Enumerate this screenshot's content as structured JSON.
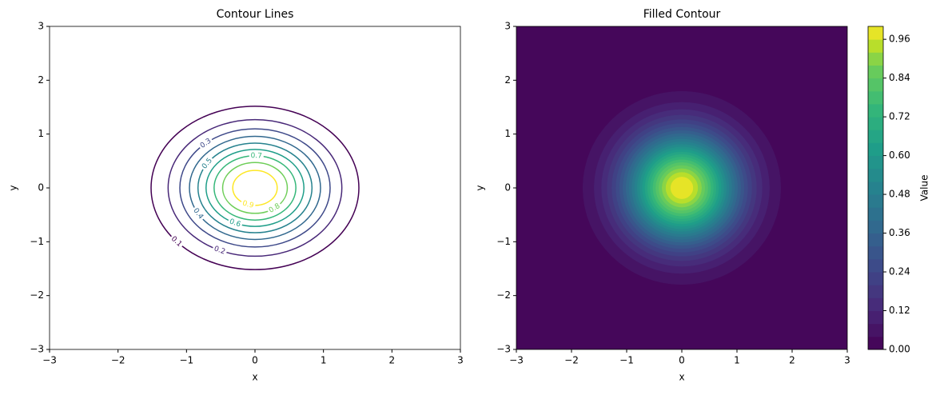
{
  "chart_data": [
    {
      "type": "contour",
      "title": "Contour Lines",
      "xlabel": "x",
      "ylabel": "y",
      "xlim": [
        -3,
        3
      ],
      "ylim": [
        -3,
        3
      ],
      "xticks": [
        {
          "value": -3,
          "label": "−3"
        },
        {
          "value": -2,
          "label": "−2"
        },
        {
          "value": -1,
          "label": "−1"
        },
        0,
        1,
        2,
        3
      ],
      "yticks": [
        {
          "value": -3,
          "label": "−3"
        },
        {
          "value": -2,
          "label": "−2"
        },
        {
          "value": -1,
          "label": "−1"
        },
        0,
        1,
        2,
        3
      ],
      "levels": [
        0.1,
        0.2,
        0.3,
        0.4,
        0.5,
        0.6,
        0.7,
        0.8,
        0.9
      ],
      "colormap": "viridis"
    },
    {
      "type": "contourf",
      "title": "Filled Contour",
      "xlabel": "x",
      "ylabel": "y",
      "xlim": [
        -3,
        3
      ],
      "ylim": [
        -3,
        3
      ],
      "xticks": [
        {
          "value": -3,
          "label": "−3"
        },
        {
          "value": -2,
          "label": "−2"
        },
        {
          "value": -1,
          "label": "−1"
        },
        0,
        1,
        2,
        3
      ],
      "yticks": [
        {
          "value": -3,
          "label": "−3"
        },
        {
          "value": -2,
          "label": "−2"
        },
        {
          "value": -1,
          "label": "−1"
        },
        0,
        1,
        2,
        3
      ],
      "levels": [
        0,
        0.04,
        0.08,
        0.12,
        0.16,
        0.2,
        0.24,
        0.28,
        0.32,
        0.36,
        0.4,
        0.44,
        0.48,
        0.52,
        0.56,
        0.6,
        0.64,
        0.68,
        0.72,
        0.76,
        0.8,
        0.84,
        0.88,
        0.92,
        0.96,
        1.0
      ],
      "colormap": "viridis",
      "colorbar": {
        "label": "Value",
        "lim": [
          0,
          1.0
        ],
        "ticks": [
          {
            "value": 0,
            "label": "0.00"
          },
          0.12,
          0.24,
          0.36,
          0.48,
          {
            "value": 0.6,
            "label": "0.60"
          },
          0.72,
          0.84,
          0.96
        ]
      }
    }
  ]
}
